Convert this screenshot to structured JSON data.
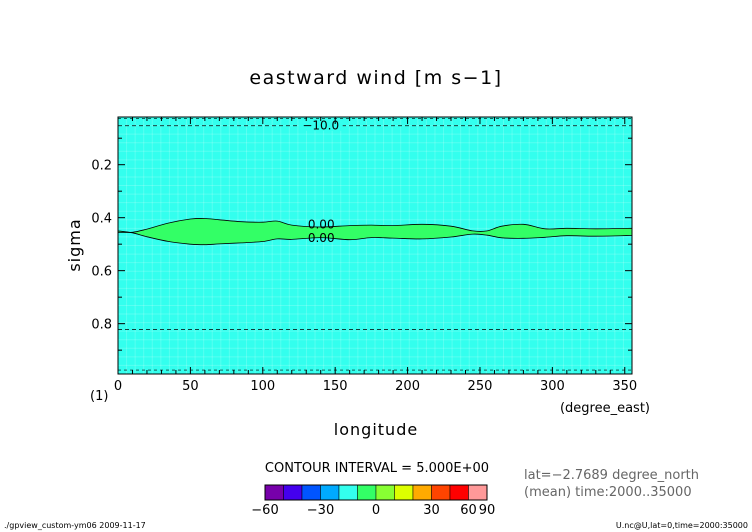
{
  "chart_data": {
    "type": "contour",
    "title": "eastward wind [m s−1]",
    "xlabel": "longitude",
    "x_unit": "(degree_east)",
    "ylabel": "sigma",
    "xlim": [
      0,
      355
    ],
    "ylim": [
      0.99,
      0.02
    ],
    "x_ticks": [
      0,
      50,
      100,
      150,
      200,
      250,
      300,
      350
    ],
    "x_tick_labels": [
      "0",
      "50",
      "100",
      "150",
      "200",
      "250",
      "300",
      "350"
    ],
    "y_ticks": [
      0.2,
      0.4,
      0.6,
      0.8
    ],
    "y_tick_labels": [
      "0.2",
      "0.4",
      "0.6",
      "0.8"
    ],
    "panel_label": "(1)",
    "background_color": "#33ffee",
    "band_color": "#33ff66",
    "band_upper_edge": {
      "lon": [
        0,
        10,
        20,
        35,
        50,
        60,
        70,
        85,
        100,
        110,
        120,
        140,
        160,
        175,
        190,
        210,
        230,
        245,
        255,
        265,
        280,
        295,
        310,
        330,
        355
      ],
      "sigma": [
        0.455,
        0.455,
        0.443,
        0.42,
        0.405,
        0.403,
        0.408,
        0.415,
        0.417,
        0.413,
        0.428,
        0.435,
        0.43,
        0.428,
        0.43,
        0.425,
        0.432,
        0.45,
        0.45,
        0.432,
        0.425,
        0.442,
        0.44,
        0.442,
        0.44
      ]
    },
    "band_lower_edge": {
      "lon": [
        0,
        10,
        20,
        35,
        50,
        60,
        70,
        85,
        100,
        110,
        120,
        140,
        160,
        175,
        190,
        210,
        230,
        245,
        255,
        265,
        280,
        295,
        310,
        330,
        355
      ],
      "sigma": [
        0.45,
        0.457,
        0.472,
        0.49,
        0.5,
        0.502,
        0.499,
        0.495,
        0.49,
        0.48,
        0.482,
        0.475,
        0.483,
        0.475,
        0.477,
        0.48,
        0.473,
        0.462,
        0.466,
        0.476,
        0.478,
        0.474,
        0.468,
        0.47,
        0.467
      ]
    },
    "dashed_contours": [
      {
        "sigma": 0.053,
        "label": "−10.0",
        "label_lon": 140
      },
      {
        "sigma": 0.822
      }
    ],
    "contour_labels": [
      {
        "text": "0.00",
        "lon": 130,
        "sigma": 0.425
      },
      {
        "text": "0.00",
        "lon": 130,
        "sigma": 0.476
      }
    ],
    "colorbar": {
      "title": "CONTOUR INTERVAL = 5.000E+00",
      "colors": [
        "#7700aa",
        "#4400ee",
        "#0055ff",
        "#00aaff",
        "#33ffee",
        "#33ff66",
        "#88ff33",
        "#ddff00",
        "#ffaa00",
        "#ff4400",
        "#ff0000",
        "#ff9999"
      ],
      "bounds": [
        -60,
        -50,
        -40,
        -30,
        -20,
        -10,
        0,
        10,
        20,
        30,
        40,
        60,
        90
      ],
      "tick_labels": [
        "−60",
        "−30",
        "0",
        "30",
        "60",
        "90"
      ]
    },
    "annotations": [
      "lat=−2.7689 degree_north",
      "(mean) time:2000..35000"
    ]
  },
  "footer": {
    "left": "./gpview_custom-ym06  2009-11-17",
    "right": "U.nc@U,lat=0,time=2000:35000"
  }
}
